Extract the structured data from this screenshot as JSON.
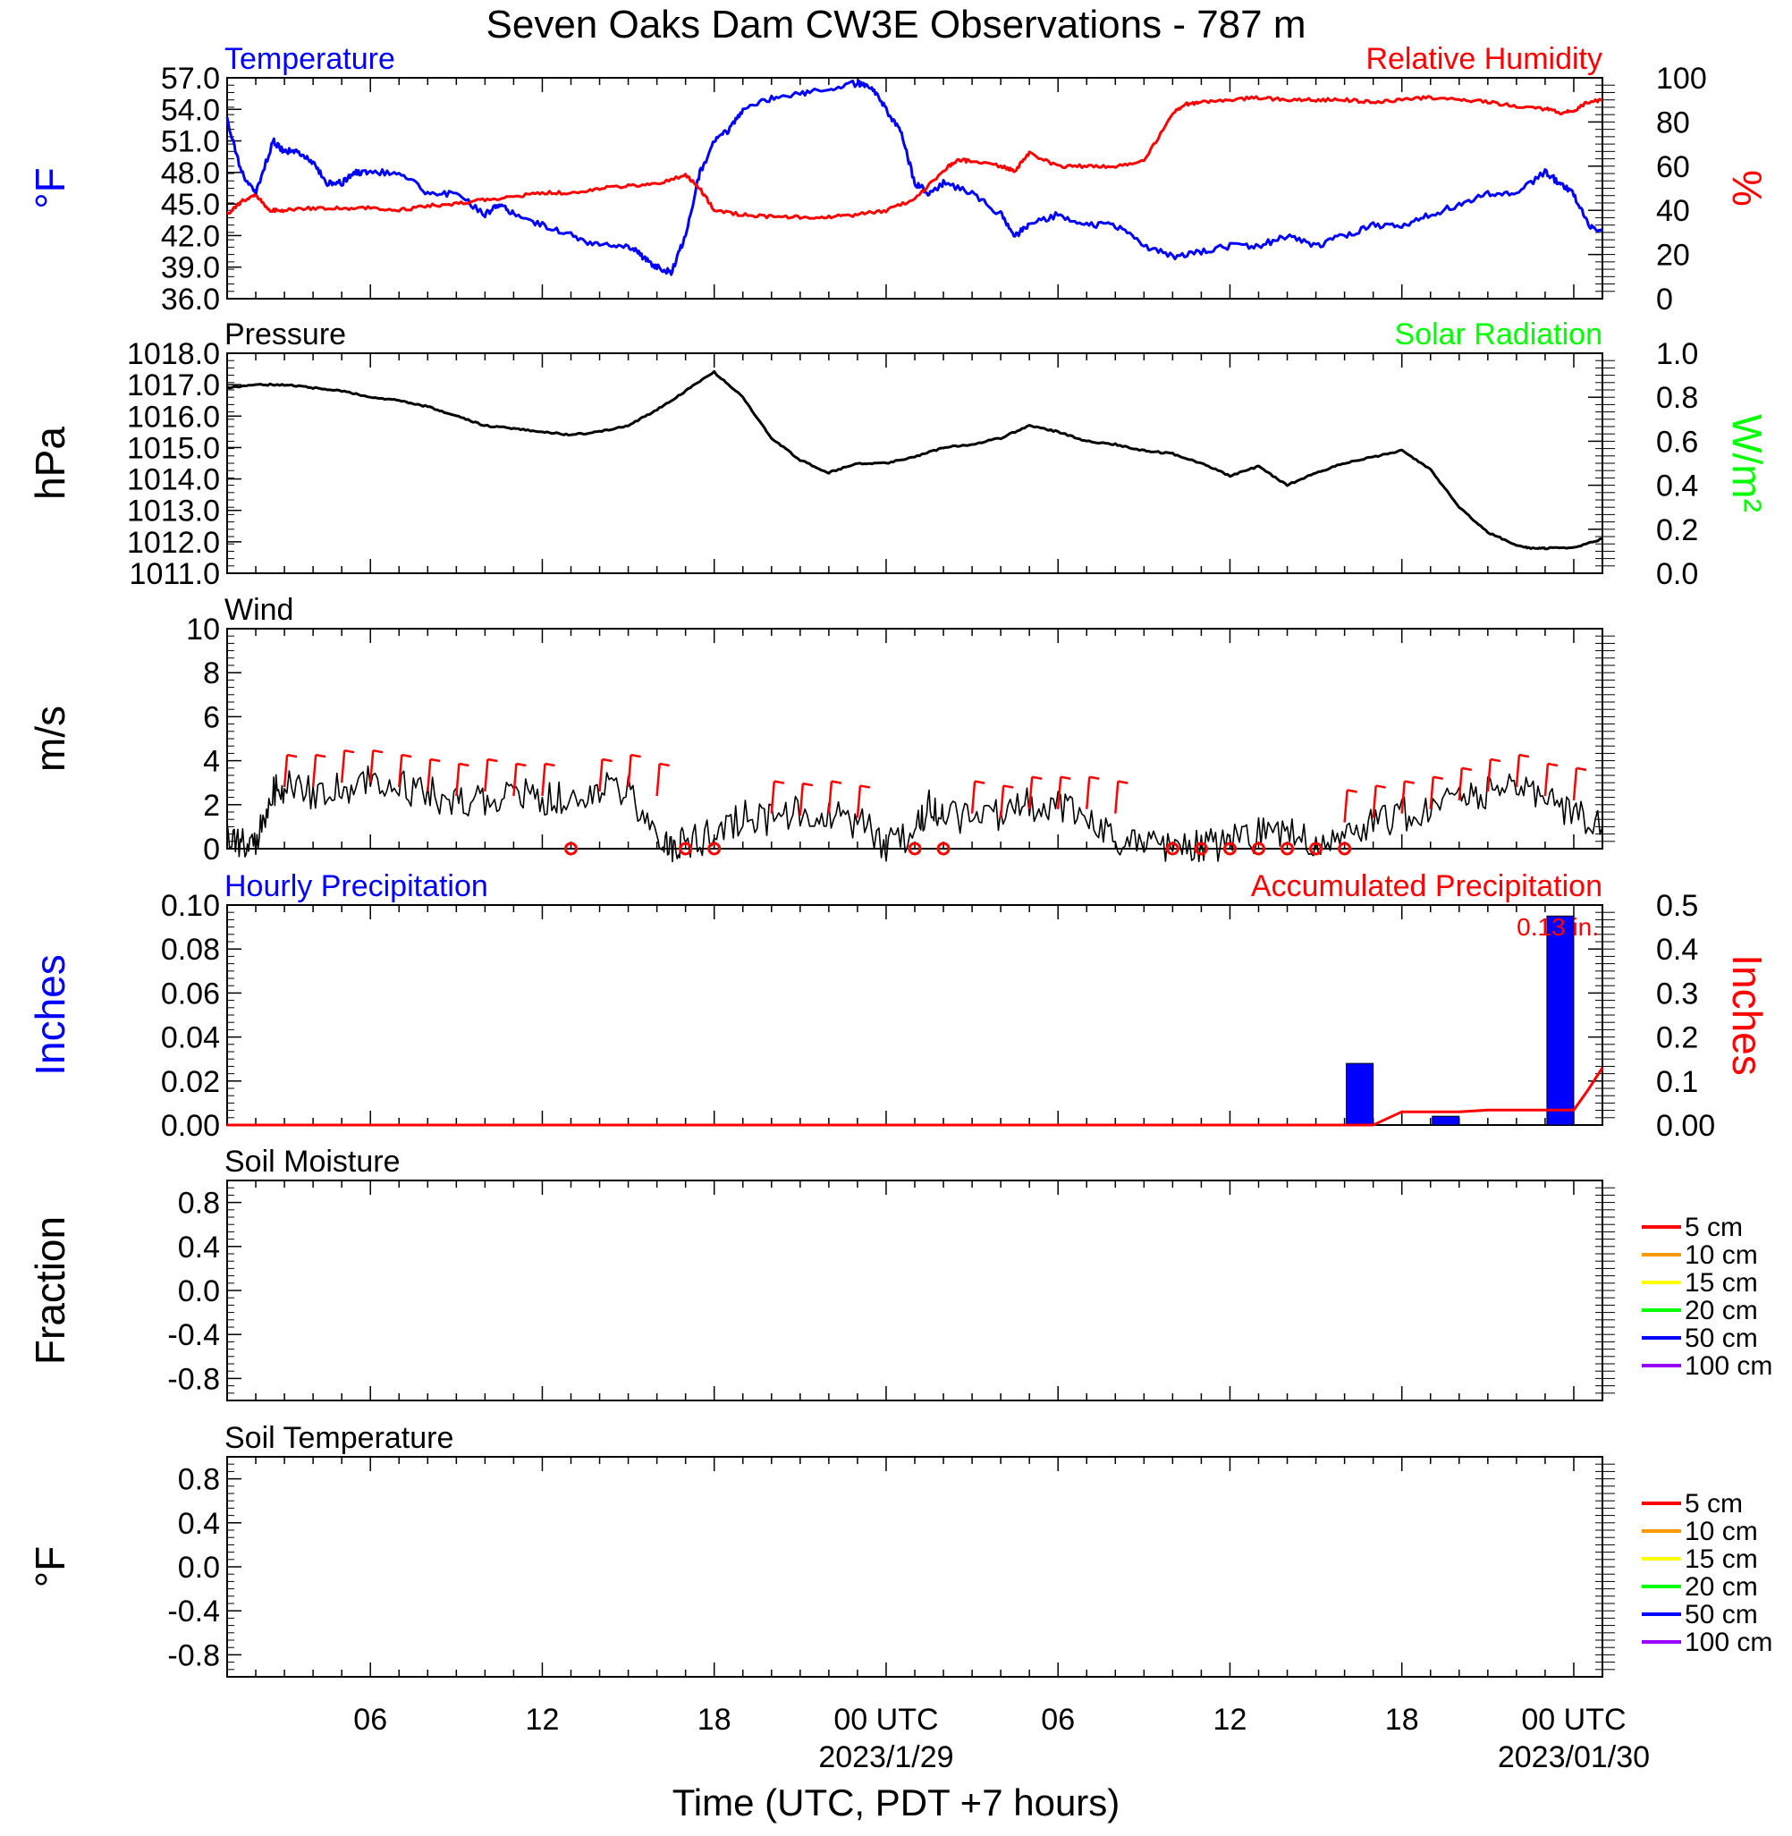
{
  "title": "Seven Oaks Dam CW3E Observations - 787 m",
  "xlabel": "Time (UTC, PDT +7 hours)",
  "x_tick_labels": [
    "06",
    "12",
    "18",
    "00 UTC",
    "06",
    "12",
    "18",
    "00 UTC"
  ],
  "x_tick_hours": [
    6,
    12,
    18,
    24,
    30,
    36,
    42,
    48
  ],
  "x_date_labels": [
    {
      "text": "2023/1/29",
      "hour": 24
    },
    {
      "text": "2023/01/30",
      "hour": 48
    }
  ],
  "x_range_hours": [
    1,
    49
  ],
  "colors": {
    "temperature": "#0000ff",
    "humidity": "#ff0000",
    "pressure": "#000000",
    "solar": "#00ff00",
    "wind": "#000000",
    "wind_barb": "#ff0000",
    "hourly_precip": "#0000ff",
    "accum_precip": "#ff0000"
  },
  "chart_data": [
    {
      "type": "line",
      "panel": "temperature",
      "title_left": "Temperature",
      "title_right": "Relative Humidity",
      "ylabel_left": "°F",
      "ylabel_right": "%",
      "yticks_left": [
        "57.0",
        "54.0",
        "51.0",
        "48.0",
        "45.0",
        "42.0",
        "39.0",
        "36.0"
      ],
      "ylim_left": [
        36,
        57
      ],
      "yticks_right": [
        "100",
        "80",
        "60",
        "40",
        "20",
        "0"
      ],
      "ylim_right": [
        0,
        100
      ],
      "series": [
        {
          "name": "Temperature",
          "axis": "left",
          "x": [
            1,
            1.5,
            2,
            2.6,
            3,
            3.5,
            4,
            4.5,
            5,
            5.5,
            6,
            7,
            8,
            9,
            10,
            10.5,
            11,
            12,
            13,
            14,
            15,
            15.5,
            16,
            16.5,
            17,
            17.5,
            18,
            18.5,
            19,
            20,
            21,
            22,
            23,
            23.5,
            24,
            24.5,
            25,
            25.5,
            26,
            27,
            28,
            28.5,
            29,
            30,
            31,
            32,
            33,
            34,
            35,
            36,
            37,
            38,
            39,
            40,
            41,
            42,
            43,
            44,
            45,
            46,
            47,
            47.5,
            48,
            48.5,
            49
          ],
          "y": [
            53,
            48,
            46,
            51,
            50,
            50,
            49,
            47,
            47,
            48,
            48,
            48,
            46,
            46,
            44,
            45,
            44,
            43,
            42,
            41,
            41,
            40,
            39,
            38.5,
            42,
            48,
            51,
            52,
            54,
            55,
            55.5,
            56,
            56.5,
            56,
            54,
            52,
            47,
            46,
            47,
            46,
            44,
            42,
            43,
            44,
            43,
            43,
            41,
            40,
            40.5,
            41,
            41,
            42,
            41,
            42,
            43,
            43,
            44,
            45,
            46,
            46,
            48,
            47,
            46,
            43,
            42.5
          ]
        },
        {
          "name": "Relative Humidity",
          "axis": "right",
          "x": [
            1,
            1.5,
            2,
            2.5,
            3,
            4,
            5,
            6,
            7,
            8,
            9,
            10,
            11,
            12,
            13,
            14,
            15,
            16,
            17,
            17.5,
            18,
            19,
            20,
            21,
            22,
            23,
            24,
            25,
            26,
            26.5,
            27,
            28,
            28.5,
            29,
            30,
            31,
            32,
            33,
            34,
            34.5,
            35,
            36,
            37,
            38,
            39,
            40,
            41,
            42,
            43,
            44,
            45,
            46,
            47,
            47.5,
            48,
            48.5,
            49
          ],
          "y": [
            38,
            44,
            47,
            40,
            40,
            41,
            41,
            41,
            40,
            42,
            43,
            45,
            46,
            48,
            48,
            50,
            51,
            52,
            56,
            50,
            40,
            38,
            37,
            37,
            37,
            38,
            40,
            45,
            58,
            63,
            62,
            60,
            58,
            66,
            60,
            60,
            60,
            62,
            84,
            88,
            89,
            90,
            91,
            90,
            90,
            90,
            89,
            90,
            91,
            90,
            89,
            87,
            86,
            84,
            85,
            89,
            90
          ]
        }
      ]
    },
    {
      "type": "line",
      "panel": "pressure",
      "title_left": "Pressure",
      "title_right": "Solar Radiation",
      "ylabel_left": "hPa",
      "ylabel_right": "W/m²",
      "yticks_left": [
        "1018.0",
        "1017.0",
        "1016.0",
        "1015.0",
        "1014.0",
        "1013.0",
        "1012.0",
        "1011.0"
      ],
      "ylim_left": [
        1011,
        1018
      ],
      "yticks_right": [
        "1.0",
        "0.8",
        "0.6",
        "0.4",
        "0.2",
        "0.0"
      ],
      "ylim_right": [
        0,
        1
      ],
      "series": [
        {
          "name": "Pressure",
          "axis": "left",
          "x": [
            1,
            2,
            3,
            4,
            5,
            6,
            7,
            8,
            9,
            10,
            11,
            12,
            13,
            14,
            15,
            16,
            17,
            18,
            19,
            20,
            21,
            22,
            23,
            24,
            25,
            26,
            27,
            28,
            29,
            30,
            31,
            32,
            33,
            34,
            35,
            36,
            37,
            38,
            39,
            40,
            41,
            42,
            43,
            44,
            45,
            46,
            46.5,
            47,
            48,
            49
          ],
          "y": [
            1016.9,
            1017,
            1017,
            1016.9,
            1016.8,
            1016.6,
            1016.5,
            1016.3,
            1016,
            1015.7,
            1015.6,
            1015.5,
            1015.4,
            1015.5,
            1015.7,
            1016.2,
            1016.8,
            1017.4,
            1016.6,
            1015.3,
            1014.6,
            1014.2,
            1014.5,
            1014.5,
            1014.7,
            1015,
            1015.1,
            1015.3,
            1015.7,
            1015.5,
            1015.2,
            1015.1,
            1014.9,
            1014.8,
            1014.5,
            1014.1,
            1014.4,
            1013.8,
            1014.2,
            1014.5,
            1014.7,
            1014.9,
            1014.3,
            1013.1,
            1012.3,
            1011.9,
            1011.8,
            1011.8,
            1011.8,
            1012.1
          ]
        }
      ]
    },
    {
      "type": "line",
      "panel": "wind",
      "title_left": "Wind",
      "ylabel_left": "m/s",
      "yticks_left": [
        "10",
        "8",
        "6",
        "4",
        "2",
        "0"
      ],
      "ylim_left": [
        0,
        10
      ],
      "series": [
        {
          "name": "Wind",
          "axis": "left",
          "x": [
            1,
            1.5,
            2,
            2.5,
            3,
            4,
            5,
            6,
            7,
            8,
            9,
            10,
            11,
            12,
            13,
            14,
            15,
            16,
            16.5,
            17,
            18,
            19,
            20,
            21,
            22,
            23,
            24,
            25,
            25.5,
            26,
            27,
            28,
            29,
            30,
            31,
            32,
            33,
            34,
            35,
            36,
            37,
            38,
            39,
            40,
            41,
            42,
            43,
            44,
            45,
            46,
            47,
            48,
            49
          ],
          "y": [
            0.5,
            0.2,
            0.3,
            2.5,
            2.8,
            2.5,
            2.8,
            3,
            2.8,
            2.5,
            2.2,
            2.3,
            2.5,
            2.2,
            2.5,
            2.8,
            2.6,
            0.5,
            0.2,
            0.3,
            0.6,
            1.5,
            1.2,
            1.8,
            1.5,
            1.2,
            0.2,
            0.6,
            2.2,
            1.5,
            1.2,
            1.5,
            2,
            1.8,
            1.8,
            0.2,
            0.1,
            0.2,
            0.1,
            0.3,
            0.6,
            0.8,
            0.2,
            1,
            1.2,
            1.5,
            2,
            2.2,
            2.5,
            2.8,
            2.5,
            1.5,
            1
          ]
        }
      ],
      "barbs_x": [
        3,
        4,
        5,
        6,
        7,
        8,
        9,
        10,
        11,
        12,
        14,
        15,
        16,
        20,
        21,
        22,
        23,
        27,
        28,
        29,
        30,
        31,
        32,
        40,
        41,
        42,
        43,
        44,
        45,
        46,
        47,
        48
      ],
      "barbs_y": [
        2.8,
        2.8,
        3,
        3,
        2.8,
        2.6,
        2.4,
        2.6,
        2.4,
        2.4,
        2.6,
        2.8,
        2.4,
        1.6,
        1.5,
        1.6,
        1.4,
        1.6,
        1.4,
        1.8,
        1.8,
        1.8,
        1.6,
        1.2,
        1.4,
        1.6,
        1.8,
        2.2,
        2.6,
        2.8,
        2.4,
        2.2
      ],
      "calm_hours": [
        13,
        17,
        18,
        25,
        26,
        34,
        35,
        36,
        37,
        38,
        39,
        40
      ]
    },
    {
      "type": "bar",
      "panel": "precipitation",
      "title_left": "Hourly Precipitation",
      "title_right": "Accumulated Precipitation",
      "annotation": "0.13 in.",
      "ylabel_left": "Inches",
      "ylabel_right": "Inches",
      "yticks_left": [
        "0.10",
        "0.08",
        "0.06",
        "0.04",
        "0.02",
        "0.00"
      ],
      "ylim_left": [
        0,
        0.1
      ],
      "yticks_right": [
        "0.5",
        "0.4",
        "0.3",
        "0.2",
        "0.1",
        "0.00"
      ],
      "ylim_right": [
        0,
        0.5
      ],
      "series": [
        {
          "name": "Hourly Precipitation",
          "axis": "left",
          "x": [
            41,
            44,
            48
          ],
          "values": [
            0.028,
            0.004,
            0.095
          ]
        },
        {
          "name": "Accumulated Precipitation",
          "axis": "right",
          "x": [
            1,
            41,
            42,
            44,
            45,
            48,
            48.5,
            49
          ],
          "y": [
            0,
            0,
            0.03,
            0.03,
            0.034,
            0.034,
            0.08,
            0.13
          ]
        }
      ]
    },
    {
      "type": "line",
      "panel": "soil_moisture",
      "title_left": "Soil Moisture",
      "ylabel_left": "Fraction",
      "yticks_left": [
        "0.8",
        "0.4",
        "0.0",
        "-0.4",
        "-0.8"
      ],
      "ylim_left": [
        -1,
        1
      ],
      "legend": [
        {
          "label": "5 cm",
          "color": "#ff0000"
        },
        {
          "label": "10 cm",
          "color": "#ff9900"
        },
        {
          "label": "15 cm",
          "color": "#ffff00"
        },
        {
          "label": "20 cm",
          "color": "#00ff00"
        },
        {
          "label": "50 cm",
          "color": "#0000ff"
        },
        {
          "label": "100 cm",
          "color": "#9900ff"
        }
      ],
      "series": []
    },
    {
      "type": "line",
      "panel": "soil_temperature",
      "title_left": "Soil Temperature",
      "ylabel_left": "°F",
      "yticks_left": [
        "0.8",
        "0.4",
        "0.0",
        "-0.4",
        "-0.8"
      ],
      "ylim_left": [
        -1,
        1
      ],
      "legend": [
        {
          "label": "5 cm",
          "color": "#ff0000"
        },
        {
          "label": "10 cm",
          "color": "#ff9900"
        },
        {
          "label": "15 cm",
          "color": "#ffff00"
        },
        {
          "label": "20 cm",
          "color": "#00ff00"
        },
        {
          "label": "50 cm",
          "color": "#0000ff"
        },
        {
          "label": "100 cm",
          "color": "#9900ff"
        }
      ],
      "series": []
    }
  ]
}
